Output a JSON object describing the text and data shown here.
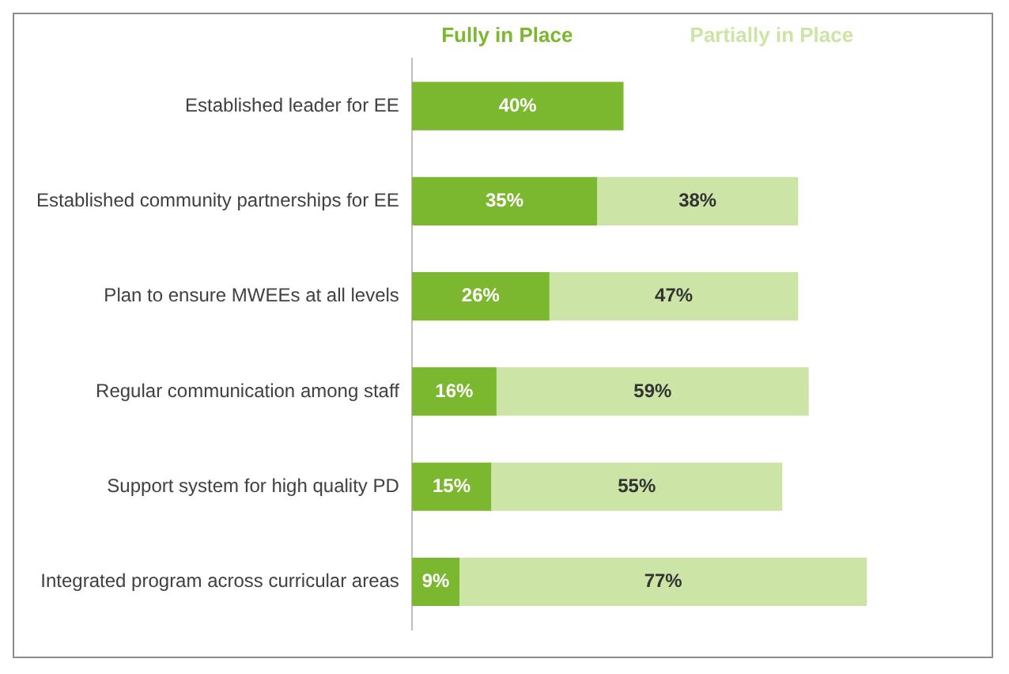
{
  "chart_data": {
    "type": "bar",
    "orientation": "horizontal",
    "stacked": true,
    "legend": "top",
    "grid": false,
    "data_labels": true,
    "categories": [
      "Established leader for EE",
      "Established community partnerships for EE",
      "Plan to ensure MWEEs at all levels",
      "Regular communication among staff",
      "Support system for high quality PD",
      "Integrated program across curricular areas"
    ],
    "series": [
      {
        "name": "Fully in Place",
        "color": "#7cb82f",
        "values": [
          40,
          35,
          26,
          16,
          15,
          9
        ],
        "value_labels": [
          "40%",
          "35%",
          "26%",
          "16%",
          "15%",
          "9%"
        ]
      },
      {
        "name": "Partially in Place",
        "color": "#cce5a6",
        "values": [
          null,
          38,
          47,
          59,
          55,
          77
        ],
        "value_labels": [
          null,
          "38%",
          "47%",
          "59%",
          "55%",
          "77%"
        ]
      }
    ]
  }
}
